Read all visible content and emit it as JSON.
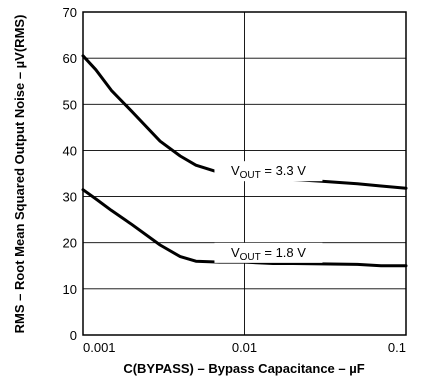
{
  "chart_data": {
    "type": "line",
    "x_scale": "log",
    "xlim": [
      0.001,
      0.1
    ],
    "ylim": [
      0,
      70
    ],
    "grid": true,
    "x_ticks": [
      "0.001",
      "0.01",
      "0.1"
    ],
    "y_ticks": [
      "0",
      "10",
      "20",
      "30",
      "40",
      "50",
      "60",
      "70"
    ],
    "xlabel": "C(BYPASS) – Bypass Capacitance – µF",
    "ylabel": "RMS – Root Mean Squared Output Noise – µV(RMS)",
    "series": [
      {
        "name": "VOUT = 3.3 V",
        "label_prefix": "V",
        "label_sub": "OUT",
        "label_suffix": " = 3.3 V",
        "points": [
          [
            0.001,
            60.5
          ],
          [
            0.0012,
            57.5
          ],
          [
            0.0015,
            53.0
          ],
          [
            0.002,
            48.5
          ],
          [
            0.003,
            42.0
          ],
          [
            0.004,
            38.8
          ],
          [
            0.005,
            36.8
          ],
          [
            0.007,
            35.2
          ],
          [
            0.01,
            34.5
          ],
          [
            0.015,
            34.0
          ],
          [
            0.02,
            33.7
          ],
          [
            0.03,
            33.3
          ],
          [
            0.05,
            32.8
          ],
          [
            0.07,
            32.3
          ],
          [
            0.1,
            31.8
          ]
        ]
      },
      {
        "name": "VOUT = 1.8 V",
        "label_prefix": "V",
        "label_sub": "OUT",
        "label_suffix": " = 1.8 V",
        "points": [
          [
            0.001,
            31.5
          ],
          [
            0.0012,
            29.5
          ],
          [
            0.0015,
            27.0
          ],
          [
            0.002,
            24.0
          ],
          [
            0.003,
            19.5
          ],
          [
            0.004,
            17.0
          ],
          [
            0.005,
            16.0
          ],
          [
            0.007,
            15.8
          ],
          [
            0.01,
            15.8
          ],
          [
            0.015,
            15.5
          ],
          [
            0.02,
            15.5
          ],
          [
            0.05,
            15.3
          ],
          [
            0.07,
            15.0
          ],
          [
            0.1,
            15.0
          ]
        ]
      }
    ],
    "annotations": [
      {
        "series": 0,
        "x_from": 0.0066,
        "x_to": 0.03,
        "y": 35.5
      },
      {
        "series": 1,
        "x_from": 0.0066,
        "x_to": 0.03,
        "y": 17.8
      }
    ]
  }
}
